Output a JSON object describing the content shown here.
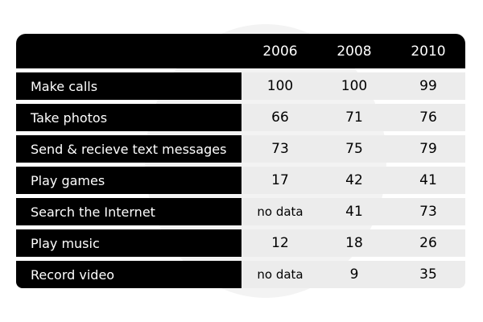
{
  "chart_data": {
    "type": "table",
    "columns": [
      "2006",
      "2008",
      "2010"
    ],
    "rows": [
      {
        "label": "Make calls",
        "values": [
          "100",
          "100",
          "99"
        ]
      },
      {
        "label": "Take photos",
        "values": [
          "66",
          "71",
          "76"
        ]
      },
      {
        "label": "Send & recieve text messages",
        "values": [
          "73",
          "75",
          "79"
        ]
      },
      {
        "label": "Play games",
        "values": [
          "17",
          "42",
          "41"
        ]
      },
      {
        "label": "Search the Internet",
        "values": [
          "no data",
          "41",
          "73"
        ]
      },
      {
        "label": "Play music",
        "values": [
          "12",
          "18",
          "26"
        ]
      },
      {
        "label": "Record video",
        "values": [
          "no data",
          "9",
          "35"
        ]
      }
    ]
  }
}
